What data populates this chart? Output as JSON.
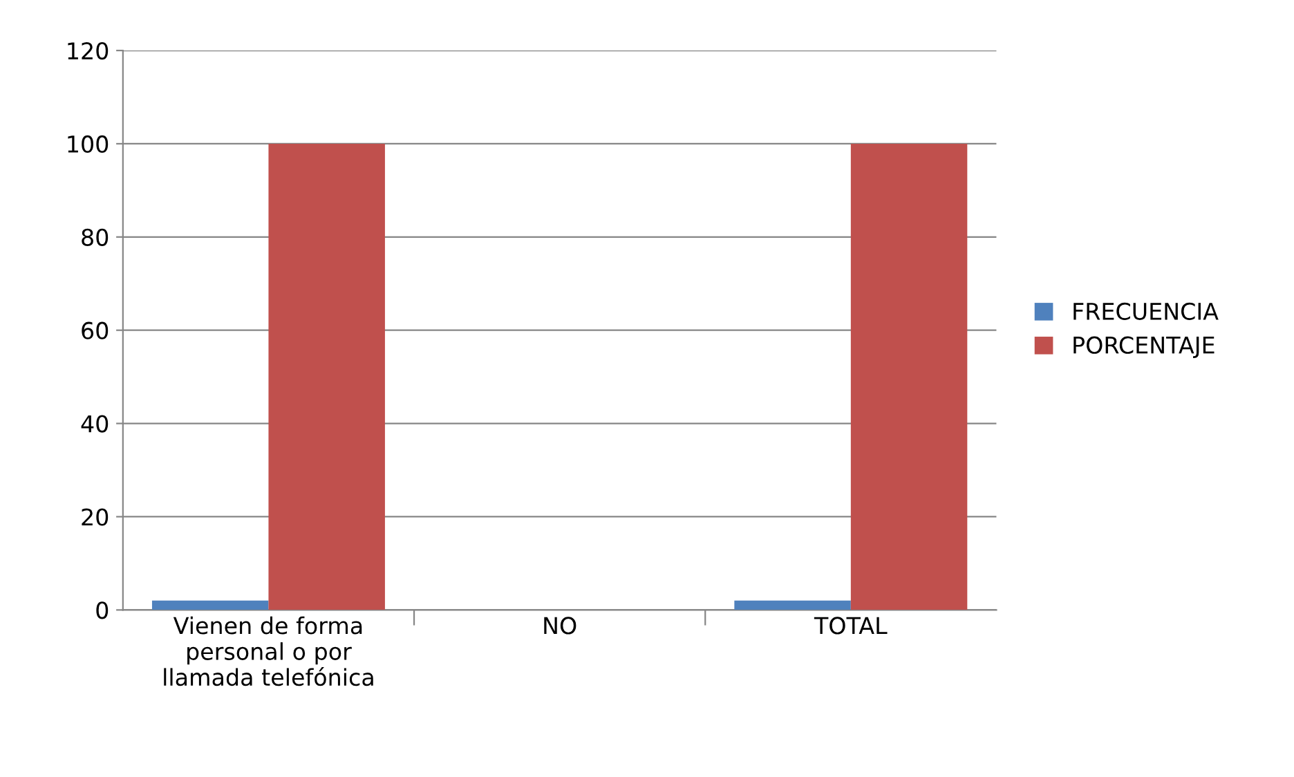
{
  "chart_data": {
    "type": "bar",
    "categories": [
      "Vienen de forma\npersonal o por\nllamada telefónica",
      "NO",
      "TOTAL"
    ],
    "series": [
      {
        "name": "FRECUENCIA",
        "color": "#4f81bd",
        "values": [
          2,
          0,
          2
        ]
      },
      {
        "name": "PORCENTAJE",
        "color": "#c0504d",
        "values": [
          100,
          0,
          100
        ]
      }
    ],
    "ylim": [
      0,
      120
    ],
    "yticks": [
      0,
      20,
      40,
      60,
      80,
      100,
      120
    ],
    "grid": "y",
    "legend": "right"
  }
}
